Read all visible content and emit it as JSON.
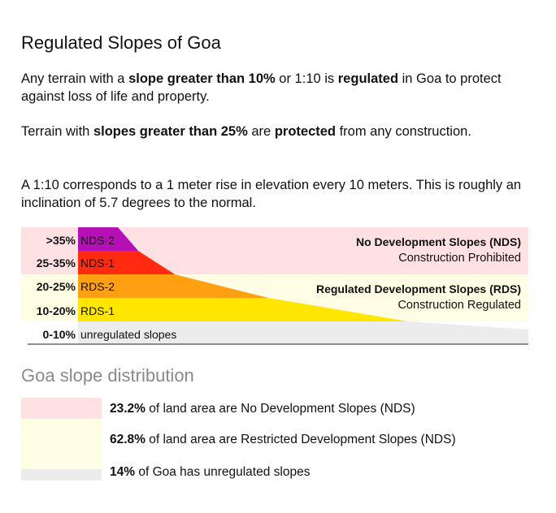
{
  "title": "Regulated Slopes of Goa",
  "intro": [
    [
      {
        "t": "Any terrain with a  ",
        "b": false
      },
      {
        "t": "slope greater than 10%",
        "b": true
      },
      {
        "t": " or 1:10 is ",
        "b": false
      },
      {
        "t": "regulated",
        "b": true
      },
      {
        "t": " in Goa to protect against loss of life and property.",
        "b": false
      }
    ],
    [
      {
        "t": "Terrain with ",
        "b": false
      },
      {
        "t": "slopes greater than 25%",
        "b": true
      },
      {
        "t": " are ",
        "b": false
      },
      {
        "t": "protected",
        "b": true
      },
      {
        "t": " from any construction.",
        "b": false
      }
    ],
    [
      {
        "t": " A 1:10 corresponds to a 1 meter rise in elevation every 10 meters. This is roughly an inclination of 5.7 degrees to the normal.",
        "b": false
      }
    ]
  ],
  "diagram": {
    "bands": [
      {
        "range": ">35%",
        "code": "NDS-2",
        "color": "#b50fb5"
      },
      {
        "range": "25-35%",
        "code": "NDS-1",
        "color": "#ff2a10"
      },
      {
        "range": "20-25%",
        "code": "RDS-2",
        "color": "#ffa012"
      },
      {
        "range": "10-20%",
        "code": "RDS-1",
        "color": "#ffe600"
      },
      {
        "range": "0-10%",
        "code": "unregulated slopes",
        "color": "#ececec"
      }
    ],
    "zones": [
      {
        "name": "No Development Slopes (NDS)",
        "desc": "Construction Prohibited",
        "color": "#ffe1e4"
      },
      {
        "name": "Regulated Development Slopes (RDS)",
        "desc": "Construction Regulated",
        "color": "#fffde3"
      }
    ]
  },
  "distribution": {
    "title": "Goa slope distribution",
    "items": [
      {
        "value": "23.2%",
        "text": " of land area are No Development Slopes (NDS)",
        "color": "#ffe1e4"
      },
      {
        "value": "62.8%",
        "text": " of land area are Restricted Development Slopes (NDS)",
        "color": "#fffde3"
      },
      {
        "value": "14%",
        "text": " of Goa has unregulated slopes",
        "color": "#ececec"
      }
    ]
  }
}
